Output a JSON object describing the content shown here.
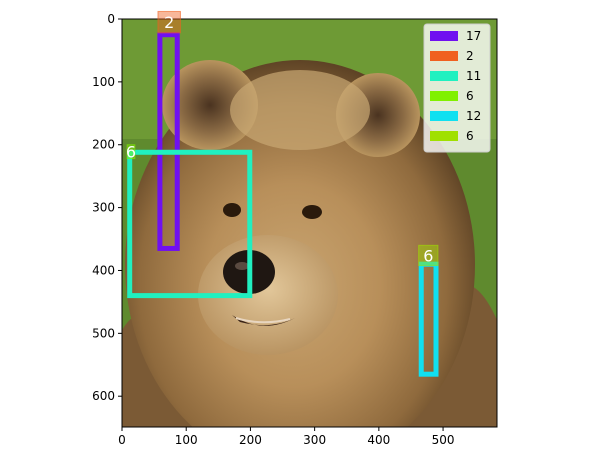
{
  "chart_data": {
    "type": "image-annotation",
    "image_subject": "brown bear face",
    "xlim": [
      0,
      584
    ],
    "ylim": [
      649,
      0
    ],
    "x_ticks": [
      0,
      100,
      200,
      300,
      400,
      500
    ],
    "y_ticks": [
      0,
      100,
      200,
      300,
      400,
      500,
      600
    ],
    "boxes": [
      {
        "label": "17",
        "x0": 59,
        "y0": 25,
        "x1": 86,
        "y1": 365,
        "color": "#7010f0",
        "show_tag": false
      },
      {
        "label": "2",
        "x0": 56,
        "y0": -12,
        "x1": 91,
        "y1": 22,
        "color": "#f06020",
        "show_tag": true,
        "tag_text": "2",
        "filled": true
      },
      {
        "label": "11",
        "x0": 12,
        "y0": 212,
        "x1": 199,
        "y1": 440,
        "color": "#20f0c0",
        "show_tag": false
      },
      {
        "label": "6",
        "x0": 8,
        "y0": 200,
        "x1": 20,
        "y1": 222,
        "color": "#80f000",
        "show_tag": true,
        "tag_text": "6",
        "filled": true
      },
      {
        "label": "12",
        "x0": 466,
        "y0": 390,
        "x1": 489,
        "y1": 565,
        "color": "#10e0f0",
        "show_tag": false
      },
      {
        "label": "6",
        "x0": 462,
        "y0": 360,
        "x1": 492,
        "y1": 392,
        "color": "#a0e000",
        "show_tag": true,
        "tag_text": "6",
        "filled": true
      }
    ],
    "legend": {
      "placement": "top-right",
      "entries": [
        {
          "label": "17",
          "color": "#7010f0"
        },
        {
          "label": "2",
          "color": "#f06020"
        },
        {
          "label": "11",
          "color": "#20f0c0"
        },
        {
          "label": "6",
          "color": "#80f000"
        },
        {
          "label": "12",
          "color": "#10e0f0"
        },
        {
          "label": "6",
          "color": "#a0e000"
        }
      ]
    }
  }
}
